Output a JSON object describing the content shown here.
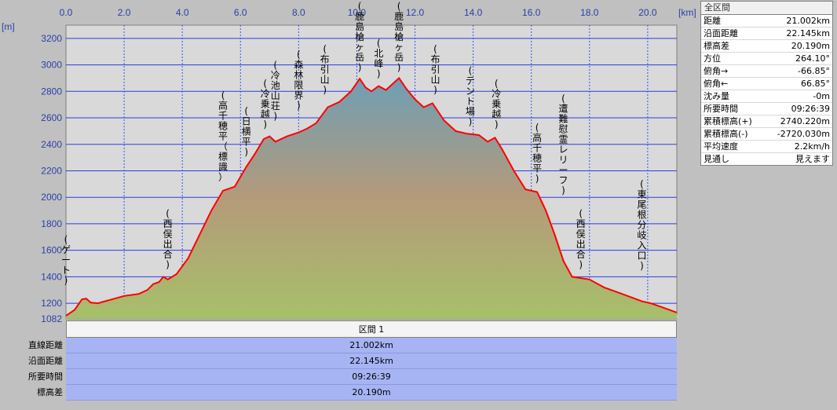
{
  "chart_data": {
    "type": "area",
    "x_unit_label": "[km]",
    "y_unit_label": "[m]",
    "xlim": [
      0,
      21.002
    ],
    "ylim": [
      1082,
      3300
    ],
    "x_ticks": [
      "0.0",
      "2.0",
      "4.0",
      "6.0",
      "8.0",
      "10.0",
      "12.0",
      "14.0",
      "16.0",
      "18.0",
      "20.0"
    ],
    "y_ticks": [
      "3200",
      "3000",
      "2800",
      "2600",
      "2400",
      "2200",
      "2000",
      "1800",
      "1600",
      "1400",
      "1200",
      "1082"
    ],
    "grid": true,
    "series": [
      {
        "x": [
          0.0,
          0.3,
          0.55,
          0.7,
          0.85,
          1.1,
          1.5,
          2.0,
          2.5,
          2.8,
          3.0,
          3.2,
          3.35,
          3.5,
          3.8,
          4.2,
          4.6,
          5.0,
          5.4,
          5.8,
          6.2,
          6.5,
          6.8,
          7.0,
          7.2,
          7.6,
          8.0,
          8.3,
          8.6,
          9.0,
          9.4,
          9.8,
          10.1,
          10.3,
          10.5,
          10.75,
          11.0,
          11.2,
          11.45,
          11.7,
          12.0,
          12.3,
          12.6,
          13.0,
          13.4,
          13.8,
          14.2,
          14.5,
          14.75,
          15.0,
          15.4,
          15.8,
          16.2,
          16.5,
          16.8,
          17.1,
          17.4,
          17.7,
          18.0,
          18.5,
          19.0,
          19.5,
          19.8,
          20.1,
          20.5,
          21.0
        ],
        "y": [
          1105,
          1150,
          1230,
          1235,
          1205,
          1200,
          1225,
          1255,
          1270,
          1300,
          1345,
          1360,
          1400,
          1380,
          1420,
          1540,
          1720,
          1900,
          2050,
          2080,
          2230,
          2330,
          2440,
          2460,
          2420,
          2460,
          2490,
          2520,
          2560,
          2680,
          2720,
          2800,
          2895,
          2830,
          2800,
          2840,
          2810,
          2850,
          2900,
          2820,
          2740,
          2680,
          2710,
          2580,
          2500,
          2480,
          2470,
          2420,
          2450,
          2360,
          2200,
          2060,
          2040,
          1900,
          1720,
          1520,
          1400,
          1390,
          1380,
          1320,
          1280,
          1240,
          1215,
          1200,
          1170,
          1130
        ]
      }
    ],
    "annotations": [
      {
        "x": 0.0,
        "y_label": 1300,
        "text": "(ゲート)"
      },
      {
        "x": 3.5,
        "y_label": 1420,
        "text": "(西俣出合)"
      },
      {
        "x": 5.4,
        "y_label": 2080,
        "text": "(高千穂平（標識）"
      },
      {
        "x": 6.2,
        "y_label": 2270,
        "text": "(日横平)"
      },
      {
        "x": 6.85,
        "y_label": 2480,
        "text": "(冷乗越)"
      },
      {
        "x": 7.2,
        "y_label": 2540,
        "text": "(冷池山荘)"
      },
      {
        "x": 8.0,
        "y_label": 2620,
        "text": "(森林限界)"
      },
      {
        "x": 8.9,
        "y_label": 2740,
        "text": "(布引山)"
      },
      {
        "x": 10.1,
        "y_label": 2910,
        "text": "(鹿島槍ヶ岳)"
      },
      {
        "x": 10.75,
        "y_label": 2860,
        "text": "(北峰)"
      },
      {
        "x": 11.45,
        "y_label": 2910,
        "text": "(鹿島槍ヶ岳)"
      },
      {
        "x": 12.7,
        "y_label": 2740,
        "text": "(布引山)"
      },
      {
        "x": 13.9,
        "y_label": 2500,
        "text": "(テント場)"
      },
      {
        "x": 14.8,
        "y_label": 2480,
        "text": "(冷乗越)"
      },
      {
        "x": 16.2,
        "y_label": 2070,
        "text": "(高千穂平)"
      },
      {
        "x": 17.1,
        "y_label": 1980,
        "text": "(遭難慰霊レリーフ)"
      },
      {
        "x": 17.7,
        "y_label": 1420,
        "text": "(西俣出合)"
      },
      {
        "x": 19.8,
        "y_label": 1410,
        "text": "(東尾根分岐入口)"
      }
    ]
  },
  "summary": {
    "title": "全区間",
    "rows": [
      {
        "label": "距離",
        "value": "21.002km"
      },
      {
        "label": "沿面距離",
        "value": "22.145km"
      },
      {
        "label": "標高差",
        "value": "20.190m"
      },
      {
        "label": "方位",
        "value": "264.10°"
      },
      {
        "label": "俯角→",
        "value": "-66.85°"
      },
      {
        "label": "俯角←",
        "value": "66.85°"
      },
      {
        "label": "沈み量",
        "value": "-0m"
      },
      {
        "label": "所要時間",
        "value": "09:26:39"
      },
      {
        "label": "累積標高(+)",
        "value": "2740.220m"
      },
      {
        "label": "累積標高(-)",
        "value": "-2720.030m"
      },
      {
        "label": "平均速度",
        "value": "2.2km/h"
      },
      {
        "label": "見通し",
        "value": "見えます"
      }
    ]
  },
  "section": {
    "header": "区間 1",
    "rows": [
      {
        "label": "直線距離",
        "value": "21.002km"
      },
      {
        "label": "沿面距離",
        "value": "22.145km"
      },
      {
        "label": "所要時間",
        "value": "09:26:39"
      },
      {
        "label": "標高差",
        "value": "20.190m"
      }
    ]
  },
  "colors": {
    "plot_bg": "#d9d9d9",
    "grid_horizontal": "#2a3de0",
    "grid_vertical": "#3355ee",
    "profile_line": "#ff0000",
    "fill_top": "#6f9eb4",
    "fill_mid": "#b59a7a",
    "fill_bottom": "#a6c06a",
    "tick_text": "#2b3fa6",
    "section_row_bg": "#a6b4f4"
  }
}
